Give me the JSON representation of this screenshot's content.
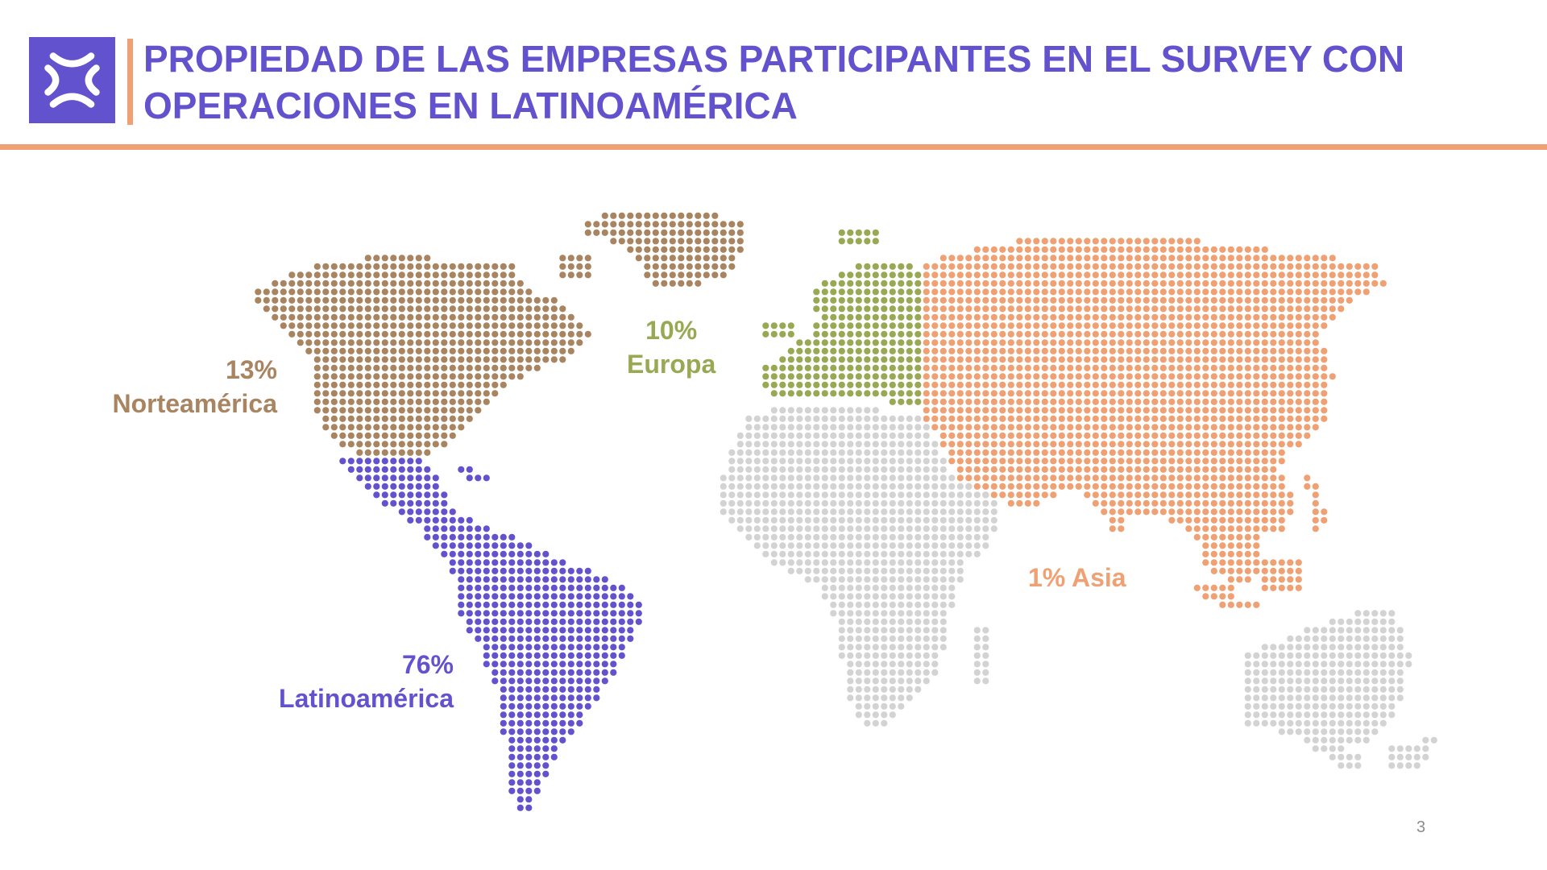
{
  "header": {
    "title_line1": "PROPIEDAD DE LAS EMPRESAS PARTICIPANTES EN EL SURVEY CON",
    "title_line2": "OPERACIONES EN LATINOAMÉRICA",
    "logo_icon": "brand-logo-icon"
  },
  "colors": {
    "brand_purple": "#6352CE",
    "accent_orange": "#EFA174",
    "north_america": "#A88461",
    "europe": "#98A853",
    "asia": "#EFA174",
    "latin_america": "#6352CE",
    "other": "#D3D3D3"
  },
  "regions": [
    {
      "key": "north_america",
      "percent": "13%",
      "name": "Norteamérica",
      "share": 13
    },
    {
      "key": "europe",
      "percent": "10%",
      "name": "Europa",
      "share": 10
    },
    {
      "key": "asia",
      "percent": "1%",
      "name": "Asia",
      "share": 1
    },
    {
      "key": "latin_america",
      "percent": "76%",
      "name": "Latinoamérica",
      "share": 76
    }
  ],
  "labels": {
    "asia_full": "1% Asia"
  },
  "page_number": "3"
}
